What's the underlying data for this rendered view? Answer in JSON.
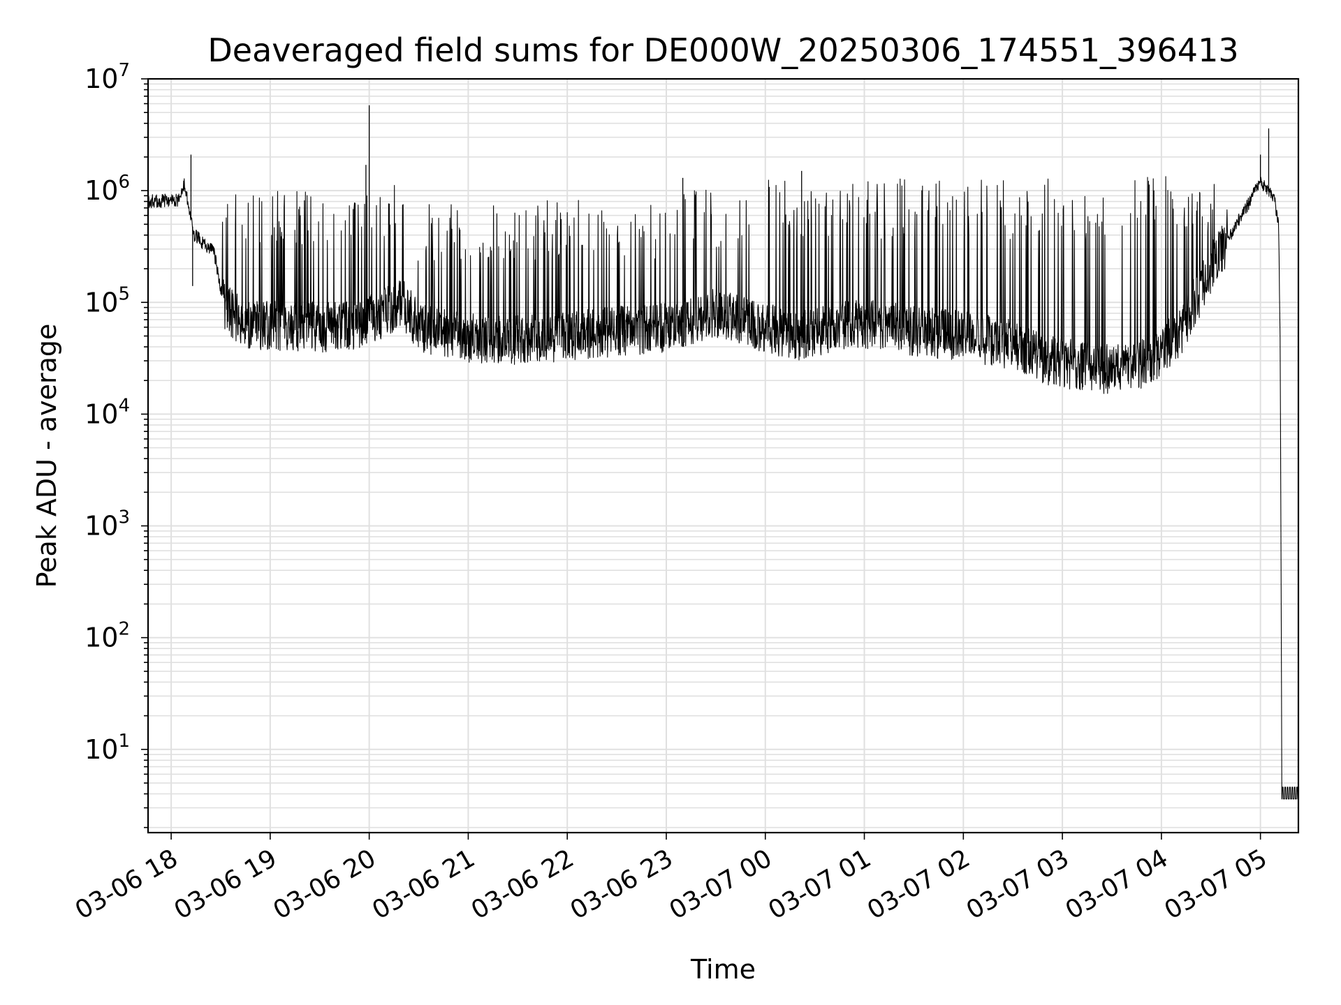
{
  "chart_data": {
    "type": "line",
    "title": "Deaveraged field sums for DE000W_20250306_174551_396413",
    "xlabel": "Time",
    "ylabel": "Peak ADU - average",
    "yscale": "log",
    "ylim": [
      1.8,
      10000000
    ],
    "xlim": [
      "2025-03-06 17:46",
      "2025-03-07 05:23"
    ],
    "grid": true,
    "grid_color": "#e0e0e0",
    "line_color": "#000000",
    "yticks": [
      {
        "base": "10",
        "exp": "1",
        "value": 10
      },
      {
        "base": "10",
        "exp": "2",
        "value": 100
      },
      {
        "base": "10",
        "exp": "3",
        "value": 1000
      },
      {
        "base": "10",
        "exp": "4",
        "value": 10000
      },
      {
        "base": "10",
        "exp": "5",
        "value": 100000
      },
      {
        "base": "10",
        "exp": "6",
        "value": 1000000
      },
      {
        "base": "10",
        "exp": "7",
        "value": 10000000
      }
    ],
    "xticks": [
      {
        "label": "03-06 18",
        "time": "2025-03-06 18:00"
      },
      {
        "label": "03-06 19",
        "time": "2025-03-06 19:00"
      },
      {
        "label": "03-06 20",
        "time": "2025-03-06 20:00"
      },
      {
        "label": "03-06 21",
        "time": "2025-03-06 21:00"
      },
      {
        "label": "03-06 22",
        "time": "2025-03-06 22:00"
      },
      {
        "label": "03-06 23",
        "time": "2025-03-06 23:00"
      },
      {
        "label": "03-07 00",
        "time": "2025-03-07 00:00"
      },
      {
        "label": "03-07 01",
        "time": "2025-03-07 01:00"
      },
      {
        "label": "03-07 02",
        "time": "2025-03-07 02:00"
      },
      {
        "label": "03-07 03",
        "time": "2025-03-07 03:00"
      },
      {
        "label": "03-07 04",
        "time": "2025-03-07 04:00"
      },
      {
        "label": "03-07 05",
        "time": "2025-03-07 05:00"
      }
    ],
    "series": [
      {
        "baseline": [
          [
            "2025-03-06 17:46",
            800000
          ],
          [
            "2025-03-06 18:05",
            820000
          ],
          [
            "2025-03-06 18:08",
            1150000
          ],
          [
            "2025-03-06 18:14",
            400000
          ],
          [
            "2025-03-06 18:26",
            280000
          ],
          [
            "2025-03-06 18:32",
            90000
          ],
          [
            "2025-03-06 18:45",
            65000
          ],
          [
            "2025-03-06 19:00",
            62000
          ],
          [
            "2025-03-06 19:30",
            60000
          ],
          [
            "2025-03-06 19:55",
            62000
          ],
          [
            "2025-03-06 20:20",
            100000
          ],
          [
            "2025-03-06 20:30",
            60000
          ],
          [
            "2025-03-06 21:00",
            48000
          ],
          [
            "2025-03-06 21:20",
            45000
          ],
          [
            "2025-03-06 22:00",
            50000
          ],
          [
            "2025-03-06 23:00",
            60000
          ],
          [
            "2025-03-06 23:30",
            80000
          ],
          [
            "2025-03-06 23:50",
            65000
          ],
          [
            "2025-03-07 00:20",
            50000
          ],
          [
            "2025-03-07 00:45",
            60000
          ],
          [
            "2025-03-07 01:00",
            65000
          ],
          [
            "2025-03-07 01:30",
            55000
          ],
          [
            "2025-03-07 02:00",
            50000
          ],
          [
            "2025-03-07 02:30",
            42000
          ],
          [
            "2025-03-07 02:50",
            30000
          ],
          [
            "2025-03-07 03:30",
            25000
          ],
          [
            "2025-03-07 03:50",
            28000
          ],
          [
            "2025-03-07 04:10",
            50000
          ],
          [
            "2025-03-07 04:30",
            200000
          ],
          [
            "2025-03-07 04:50",
            650000
          ],
          [
            "2025-03-07 05:00",
            1200000
          ],
          [
            "2025-03-07 05:08",
            900000
          ],
          [
            "2025-03-07 05:11",
            500000
          ],
          [
            "2025-03-07 05:12",
            40000
          ],
          [
            "2025-03-07 05:13",
            4
          ],
          [
            "2025-03-07 05:23",
            4
          ]
        ],
        "spike_segments": [
          {
            "from": "2025-03-06 18:30",
            "to": "2025-03-06 20:20",
            "peak": 1150000
          },
          {
            "from": "2025-03-06 20:20",
            "to": "2025-03-06 21:00",
            "peak": 800000
          },
          {
            "from": "2025-03-06 21:00",
            "to": "2025-03-06 23:00",
            "peak": 850000
          },
          {
            "from": "2025-03-06 23:00",
            "to": "2025-03-07 00:00",
            "peak": 1100000
          },
          {
            "from": "2025-03-07 00:00",
            "to": "2025-03-07 03:45",
            "peak": 1300000
          },
          {
            "from": "2025-03-07 03:45",
            "to": "2025-03-07 04:40",
            "peak": 1400000
          }
        ],
        "notable_peaks": [
          [
            "2025-03-06 18:12",
            2100000
          ],
          [
            "2025-03-06 18:13",
            140000
          ],
          [
            "2025-03-06 19:58",
            1700000
          ],
          [
            "2025-03-06 20:00",
            5800000
          ],
          [
            "2025-03-06 23:10",
            1300000
          ],
          [
            "2025-03-07 00:22",
            1500000
          ],
          [
            "2025-03-07 05:00",
            2100000
          ],
          [
            "2025-03-07 05:05",
            3600000
          ]
        ]
      }
    ]
  }
}
